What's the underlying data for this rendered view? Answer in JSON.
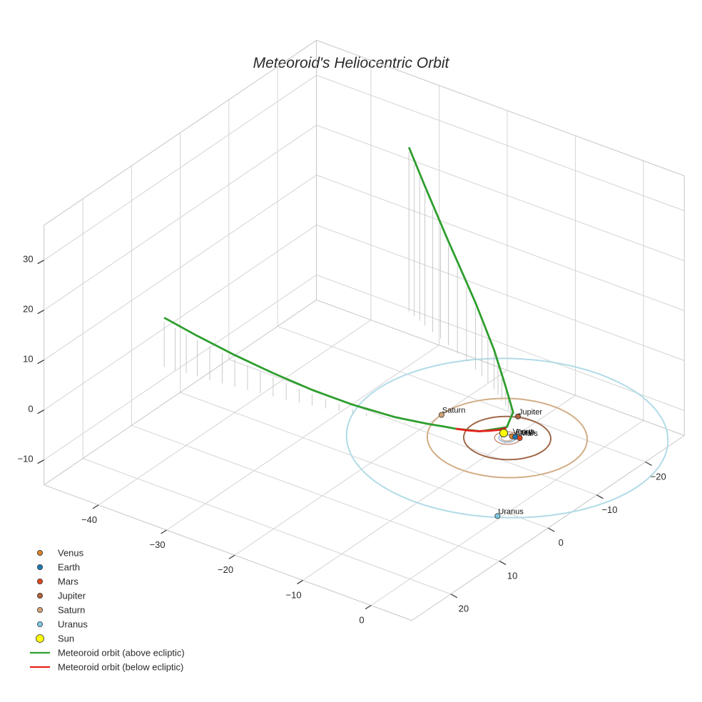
{
  "chart_data": {
    "type": "scatter3d",
    "title": "Meteoroid's Heliocentric Orbit",
    "x_ticks": [
      "−40",
      "−30",
      "−20",
      "−10",
      "0"
    ],
    "y_ticks": [
      "−20",
      "−10",
      "0",
      "10",
      "20"
    ],
    "z_ticks": [
      "30",
      "20",
      "10",
      "0",
      "−10"
    ],
    "xlim": [
      -48,
      6
    ],
    "ylim": [
      -28,
      28
    ],
    "zlim": [
      -15,
      37
    ],
    "grid": true,
    "legend_position": "bottom-left",
    "legend": [
      {
        "name": "Venus",
        "kind": "marker",
        "color": "#d9822b"
      },
      {
        "name": "Earth",
        "kind": "marker",
        "color": "#1f77b4"
      },
      {
        "name": "Mars",
        "kind": "marker",
        "color": "#e0461f"
      },
      {
        "name": "Jupiter",
        "kind": "marker",
        "color": "#b0603a"
      },
      {
        "name": "Saturn",
        "kind": "marker",
        "color": "#d4a373"
      },
      {
        "name": "Uranus",
        "kind": "marker",
        "color": "#7ec8e3"
      },
      {
        "name": "Sun",
        "kind": "marker",
        "color": "#ffff00"
      },
      {
        "name": "Meteoroid orbit (above ecliptic)",
        "kind": "line",
        "color": "#2e9e2e"
      },
      {
        "name": "Meteoroid orbit (below ecliptic)",
        "kind": "line",
        "color": "#e8201c"
      }
    ],
    "planets": [
      {
        "name": "Venus",
        "x": 0.2,
        "y": -0.7,
        "z": 0,
        "orbit_radius": 0.72,
        "color": "#d9822b",
        "orbit_color": "#c8a98a"
      },
      {
        "name": "Earth",
        "x": 0.6,
        "y": -0.8,
        "z": 0,
        "orbit_radius": 1.0,
        "color": "#1f77b4",
        "orbit_color": "#8fb2cf"
      },
      {
        "name": "Mars",
        "x": 1.2,
        "y": -0.9,
        "z": 0,
        "orbit_radius": 1.52,
        "color": "#e0461f",
        "orbit_color": "#c98a76"
      },
      {
        "name": "Jupiter",
        "x": -2.0,
        "y": -5.0,
        "z": 0,
        "orbit_radius": 5.2,
        "color": "#b0603a",
        "orbit_color": "#a0684a"
      },
      {
        "name": "Saturn",
        "x": -9.5,
        "y": 0.2,
        "z": 0,
        "orbit_radius": 9.55,
        "color": "#d4a373",
        "orbit_color": "#d2ad85"
      },
      {
        "name": "Uranus",
        "x": 10.0,
        "y": 16.0,
        "z": 0,
        "orbit_radius": 19.2,
        "color": "#7ec8e3",
        "orbit_color": "#b2dbe8"
      }
    ],
    "sun": {
      "name": "Sun",
      "x": 0,
      "y": 0,
      "z": 0,
      "color": "#ffff00"
    },
    "meteoroid_above": {
      "color": "#2e9e2e",
      "x": [
        -42.5,
        -38,
        -33,
        -28,
        -23,
        -18,
        -13,
        -9.5,
        -7.5,
        -6.2
      ],
      "y": [
        11.0,
        10.5,
        9.8,
        8.9,
        7.9,
        6.6,
        4.9,
        3.3,
        2.4,
        1.9
      ],
      "z": [
        10.0,
        8.3,
        6.5,
        4.8,
        3.3,
        2.0,
        0.9,
        0.3,
        0.1,
        0.0
      ],
      "x2": [
        -6.2,
        -3.5,
        -1.5,
        -2.0,
        -4.5,
        -8.0,
        -12.5,
        -18.5,
        -23.5,
        -27.0
      ],
      "y2": [
        1.9,
        0.6,
        -2.0,
        -4.0,
        -6.0,
        -8.5,
        -11.0,
        -13.8,
        -16.0,
        -17.6
      ],
      "z2": [
        0.0,
        0.0,
        0.1,
        1.5,
        4.0,
        8.0,
        13.5,
        21.0,
        28.0,
        33.0
      ]
    },
    "meteoroid_below": {
      "color": "#e8201c",
      "x": [
        -6.2,
        -5.0,
        -3.8,
        -2.8,
        -2.0,
        -1.5
      ],
      "y": [
        1.9,
        1.3,
        0.6,
        -0.3,
        -1.1,
        -1.9
      ],
      "z": [
        0.0,
        -0.1,
        -0.15,
        -0.15,
        -0.1,
        0.0
      ]
    }
  }
}
